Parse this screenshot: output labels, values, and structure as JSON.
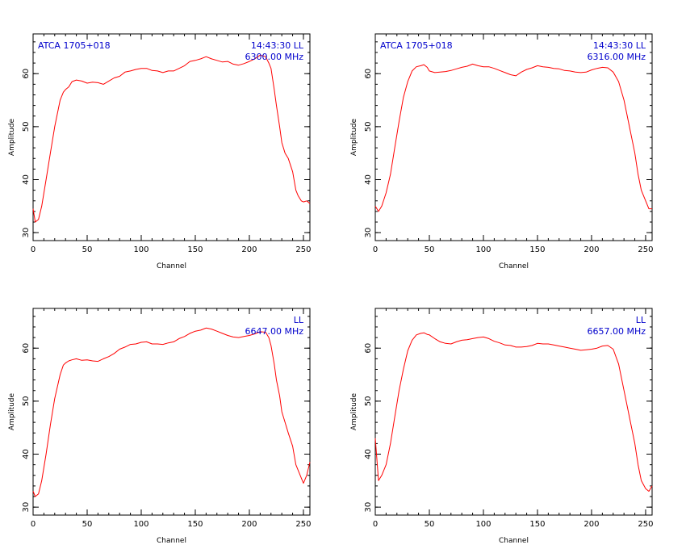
{
  "chart_data": [
    {
      "type": "line",
      "xlabel": "Channel",
      "ylabel": "Amplitude",
      "xlim": [
        0,
        256
      ],
      "ylim": [
        28.5,
        67.5
      ],
      "xticks": [
        0,
        50,
        100,
        150,
        200,
        250
      ],
      "yticks": [
        30,
        40,
        50,
        60
      ],
      "annotations": {
        "left": "ATCA  1705+018",
        "time": "14:43:30  LL",
        "freq": "6300.00  MHz"
      },
      "series": [
        {
          "color": "#ff0000",
          "x": [
            0,
            2,
            5,
            8,
            12,
            16,
            20,
            25,
            28,
            30,
            33,
            36,
            40,
            45,
            50,
            55,
            60,
            65,
            70,
            75,
            80,
            85,
            90,
            95,
            100,
            105,
            110,
            115,
            120,
            125,
            130,
            135,
            140,
            145,
            150,
            155,
            160,
            165,
            170,
            175,
            180,
            185,
            190,
            195,
            200,
            205,
            210,
            215,
            218,
            220,
            223,
            225,
            228,
            230,
            233,
            236,
            240,
            243,
            245,
            248,
            250,
            253,
            256
          ],
          "y": [
            34.5,
            32,
            32.5,
            35,
            40,
            45,
            50,
            55,
            56.5,
            57,
            57.5,
            58.5,
            58.8,
            58.6,
            58.2,
            58.4,
            58.3,
            58,
            58.6,
            59.2,
            59.5,
            60.3,
            60.5,
            60.8,
            61,
            61,
            60.6,
            60.5,
            60.2,
            60.5,
            60.5,
            61,
            61.5,
            62.3,
            62.5,
            62.8,
            63.2,
            62.8,
            62.5,
            62.2,
            62.3,
            61.8,
            61.6,
            61.9,
            62.3,
            62.8,
            63.5,
            63.2,
            62,
            61,
            57,
            54,
            50,
            47,
            45,
            44,
            41.5,
            38,
            37,
            36,
            35.8,
            36,
            35.5
          ]
        }
      ]
    },
    {
      "type": "line",
      "xlabel": "Channel",
      "ylabel": "Amplitude",
      "xlim": [
        0,
        256
      ],
      "ylim": [
        28.5,
        67.5
      ],
      "xticks": [
        0,
        50,
        100,
        150,
        200,
        250
      ],
      "yticks": [
        30,
        40,
        50,
        60
      ],
      "annotations": {
        "left": "ATCA  1705+018",
        "time": "14:43:30  LL",
        "freq": "6316.00  MHz"
      },
      "series": [
        {
          "color": "#ff0000",
          "x": [
            0,
            3,
            6,
            10,
            14,
            18,
            22,
            26,
            30,
            34,
            38,
            42,
            45,
            48,
            50,
            55,
            60,
            65,
            70,
            75,
            80,
            85,
            90,
            95,
            100,
            105,
            110,
            115,
            120,
            125,
            130,
            135,
            140,
            145,
            150,
            155,
            160,
            165,
            170,
            175,
            180,
            185,
            190,
            195,
            200,
            205,
            210,
            215,
            220,
            225,
            230,
            235,
            240,
            243,
            246,
            250,
            253,
            256
          ],
          "y": [
            35,
            34,
            35,
            37.5,
            41,
            46,
            51,
            55.5,
            58.5,
            60.5,
            61.3,
            61.5,
            61.7,
            61.2,
            60.5,
            60.2,
            60.3,
            60.4,
            60.6,
            60.9,
            61.2,
            61.4,
            61.8,
            61.5,
            61.3,
            61.3,
            61,
            60.6,
            60.2,
            59.8,
            59.6,
            60.3,
            60.8,
            61.1,
            61.5,
            61.3,
            61.2,
            61,
            60.9,
            60.6,
            60.5,
            60.3,
            60.2,
            60.3,
            60.7,
            61,
            61.2,
            61.1,
            60.3,
            58.5,
            55,
            50,
            45,
            41,
            38,
            36,
            34.5,
            34.5
          ]
        }
      ]
    },
    {
      "type": "line",
      "xlabel": "Channel",
      "ylabel": "Amplitude",
      "xlim": [
        0,
        256
      ],
      "ylim": [
        28.5,
        67.5
      ],
      "xticks": [
        0,
        50,
        100,
        150,
        200,
        250
      ],
      "yticks": [
        30,
        40,
        50,
        60
      ],
      "annotations": {
        "time": "LL",
        "freq": "6647.00  MHz"
      },
      "series": [
        {
          "color": "#ff0000",
          "x": [
            0,
            2,
            5,
            8,
            12,
            16,
            20,
            25,
            28,
            30,
            33,
            36,
            40,
            45,
            50,
            55,
            60,
            65,
            70,
            75,
            80,
            85,
            90,
            95,
            100,
            105,
            110,
            115,
            120,
            125,
            130,
            135,
            140,
            145,
            150,
            155,
            160,
            165,
            170,
            175,
            180,
            185,
            190,
            195,
            200,
            205,
            210,
            215,
            218,
            220,
            223,
            225,
            228,
            230,
            233,
            236,
            240,
            243,
            245,
            248,
            250,
            253,
            256
          ],
          "y": [
            33,
            32,
            32.5,
            35,
            40,
            45.5,
            50.5,
            55,
            56.8,
            57.2,
            57.6,
            57.8,
            58,
            57.7,
            57.8,
            57.6,
            57.5,
            58,
            58.4,
            59,
            59.8,
            60.2,
            60.7,
            60.8,
            61.1,
            61.2,
            60.8,
            60.8,
            60.7,
            61,
            61.2,
            61.8,
            62.2,
            62.8,
            63.2,
            63.4,
            63.8,
            63.6,
            63.2,
            62.8,
            62.4,
            62.1,
            62,
            62.2,
            62.4,
            62.7,
            63.1,
            63,
            62,
            60.5,
            57,
            54,
            51,
            48,
            46,
            44,
            41.5,
            38,
            37,
            35.5,
            34.5,
            36,
            38.5
          ]
        }
      ]
    },
    {
      "type": "line",
      "xlabel": "Channel",
      "ylabel": "Amplitude",
      "xlim": [
        0,
        256
      ],
      "ylim": [
        28.5,
        67.5
      ],
      "xticks": [
        0,
        50,
        100,
        150,
        200,
        250
      ],
      "yticks": [
        30,
        40,
        50,
        60
      ],
      "annotations": {
        "time": "LL",
        "freq": "6657.00  MHz"
      },
      "series": [
        {
          "color": "#ff0000",
          "x": [
            0,
            3,
            6,
            10,
            14,
            18,
            22,
            26,
            30,
            34,
            38,
            42,
            45,
            48,
            50,
            55,
            60,
            65,
            70,
            75,
            80,
            85,
            90,
            95,
            100,
            105,
            110,
            115,
            120,
            125,
            130,
            135,
            140,
            145,
            150,
            155,
            160,
            165,
            170,
            175,
            180,
            185,
            190,
            195,
            200,
            205,
            210,
            215,
            220,
            225,
            230,
            235,
            240,
            243,
            246,
            250,
            253,
            256
          ],
          "y": [
            43,
            35,
            36,
            38,
            42,
            47,
            52,
            56,
            59.5,
            61.5,
            62.5,
            62.8,
            62.9,
            62.6,
            62.5,
            61.8,
            61.2,
            60.9,
            60.8,
            61.2,
            61.5,
            61.6,
            61.8,
            62,
            62.1,
            61.8,
            61.3,
            61,
            60.6,
            60.5,
            60.2,
            60.2,
            60.3,
            60.5,
            60.9,
            60.8,
            60.8,
            60.6,
            60.4,
            60.2,
            60,
            59.8,
            59.6,
            59.7,
            59.8,
            60,
            60.4,
            60.5,
            59.8,
            57,
            52,
            47,
            42,
            38,
            35,
            33.5,
            33,
            34
          ]
        }
      ]
    }
  ]
}
